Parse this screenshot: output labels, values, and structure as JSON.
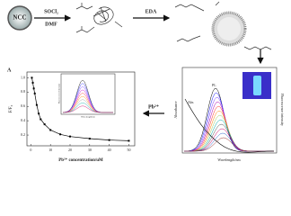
{
  "diagram": {
    "ncc": "NCC",
    "reagent1": "SOCl₂",
    "solvent1": "DMF",
    "reagent2": "EDA",
    "analyte": "Pb²⁺",
    "spectra_y_left": "Absorbance",
    "spectra_y_right": "Fluorescence intensity",
    "spectra_x": "Wavelength/nm",
    "pl_label": "PL",
    "abs_label": "Abs",
    "inset_y": "Fluorescence Intensity",
    "inset_x": "Wavelength/nm"
  },
  "chart_data": {
    "type": "line",
    "panel_label": "A",
    "y_label": "F/F₀",
    "x_label": "Pb²⁺ concentration/uM",
    "color": "#000000",
    "x": [
      0.5,
      1,
      1.5,
      2,
      3,
      4,
      5,
      7,
      10,
      15,
      20,
      30,
      40,
      50
    ],
    "values": [
      1.0,
      0.93,
      0.85,
      0.78,
      0.62,
      0.5,
      0.42,
      0.35,
      0.27,
      0.21,
      0.18,
      0.15,
      0.13,
      0.12
    ],
    "xlim": [
      -2,
      53
    ],
    "ylim": [
      0.05,
      1.08
    ],
    "xticks": [
      0,
      10,
      20,
      30,
      40,
      50
    ],
    "yticks": [
      0.2,
      0.4,
      0.6,
      0.8,
      {
        "value": 1,
        "label": "1.0"
      }
    ]
  }
}
